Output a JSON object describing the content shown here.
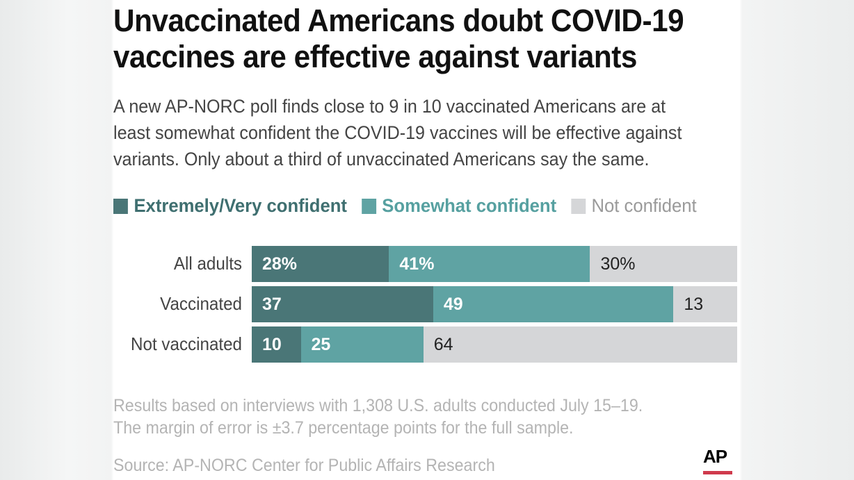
{
  "title_line1": "Unvaccinated Americans doubt COVID-19",
  "title_line2": "vaccines are effective against variants",
  "subtitle_line1": "A new AP-NORC poll finds close to 9 in 10 vaccinated Americans are at",
  "subtitle_line2": "least somewhat confident the COVID-19 vaccines will be effective against",
  "subtitle_line3": "variants. Only about a third of unvaccinated Americans say the same.",
  "chart_data": {
    "type": "bar",
    "orientation": "horizontal-stacked",
    "categories": [
      "All adults",
      "Vaccinated",
      "Not vaccinated"
    ],
    "series": [
      {
        "name": "Extremely/Very confident",
        "color": "#4a7677",
        "values": [
          28,
          37,
          10
        ],
        "labels": [
          "28%",
          "37",
          "10"
        ]
      },
      {
        "name": "Somewhat confident",
        "color": "#5fa3a3",
        "values": [
          41,
          49,
          25
        ],
        "labels": [
          "41%",
          "49",
          "25"
        ]
      },
      {
        "name": "Not confident",
        "color": "#d5d6d8",
        "values": [
          30,
          13,
          64
        ],
        "labels": [
          "30%",
          "13",
          "64"
        ]
      }
    ],
    "legend_placement": "top",
    "grid": false
  },
  "footnote_line1": "Results based on interviews with 1,308 U.S. adults conducted July 15–19.",
  "footnote_line2": "The margin of error is ±3.7 percentage points for the full sample.",
  "source": "Source: AP-NORC Center for Public Affairs Research",
  "logo": "AP",
  "colors": {
    "legend_text": [
      "#3f6f70",
      "#56a0a0",
      "#9a9a9a"
    ]
  }
}
